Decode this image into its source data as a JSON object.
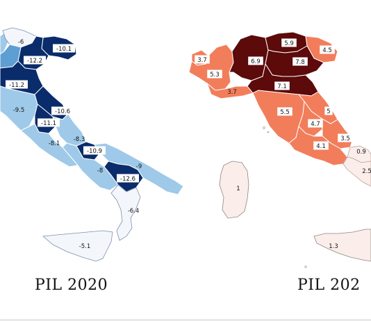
{
  "maps": [
    {
      "caption": "PIL 2020",
      "palette": {
        "darkest": "#0a2c6b",
        "mid": "#5d9fd3",
        "light": "#9fc9e8",
        "lightest": "#f3f7fc"
      },
      "region_values": [
        {
          "region": "Trentino-Alto Adige",
          "value": "-6"
        },
        {
          "region": "Friuli-Venezia Giulia",
          "value": "-10.1"
        },
        {
          "region": "Veneto",
          "value": "-12.2"
        },
        {
          "region": "Emilia-Romagna",
          "value": "-11.2"
        },
        {
          "region": "Toscana",
          "value": "-9.5"
        },
        {
          "region": "Marche",
          "value": "-10.6"
        },
        {
          "region": "Umbria",
          "value": "-11.1"
        },
        {
          "region": "Abruzzo",
          "value": "-8.3"
        },
        {
          "region": "Lazio",
          "value": "-8.1"
        },
        {
          "region": "Molise",
          "value": "-10.9"
        },
        {
          "region": "Campania",
          "value": "-8"
        },
        {
          "region": "Puglia",
          "value": "-9"
        },
        {
          "region": "Basilicata",
          "value": "-12.6"
        },
        {
          "region": "Calabria",
          "value": "-6.4"
        },
        {
          "region": "Sicilia",
          "value": "-5.1"
        }
      ]
    },
    {
      "caption": "PIL 202",
      "palette": {
        "darkest": "#5c0a0a",
        "mid": "#f27d5b",
        "light": "#f6b8a3",
        "lightest": "#fbeeea"
      },
      "region_values": [
        {
          "region": "Valle d'Aosta",
          "value": "3.7"
        },
        {
          "region": "Piemonte",
          "value": "5.3"
        },
        {
          "region": "Liguria",
          "value": "3.7"
        },
        {
          "region": "Lombardia",
          "value": "6.9"
        },
        {
          "region": "Trentino-Alto Adige",
          "value": "5.9"
        },
        {
          "region": "Veneto",
          "value": "7.8"
        },
        {
          "region": "Friuli-Venezia Giulia",
          "value": "4.5"
        },
        {
          "region": "Emilia-Romagna",
          "value": "7.1"
        },
        {
          "region": "Toscana",
          "value": "5.5"
        },
        {
          "region": "Marche",
          "value": "5"
        },
        {
          "region": "Umbria",
          "value": "4.7"
        },
        {
          "region": "Lazio",
          "value": "4.1"
        },
        {
          "region": "Abruzzo",
          "value": "3.5"
        },
        {
          "region": "Molise",
          "value": "0.9"
        },
        {
          "region": "Campania",
          "value": "2.5"
        },
        {
          "region": "Sardegna",
          "value": "1"
        },
        {
          "region": "Sicilia",
          "value": "1.3"
        }
      ]
    }
  ]
}
